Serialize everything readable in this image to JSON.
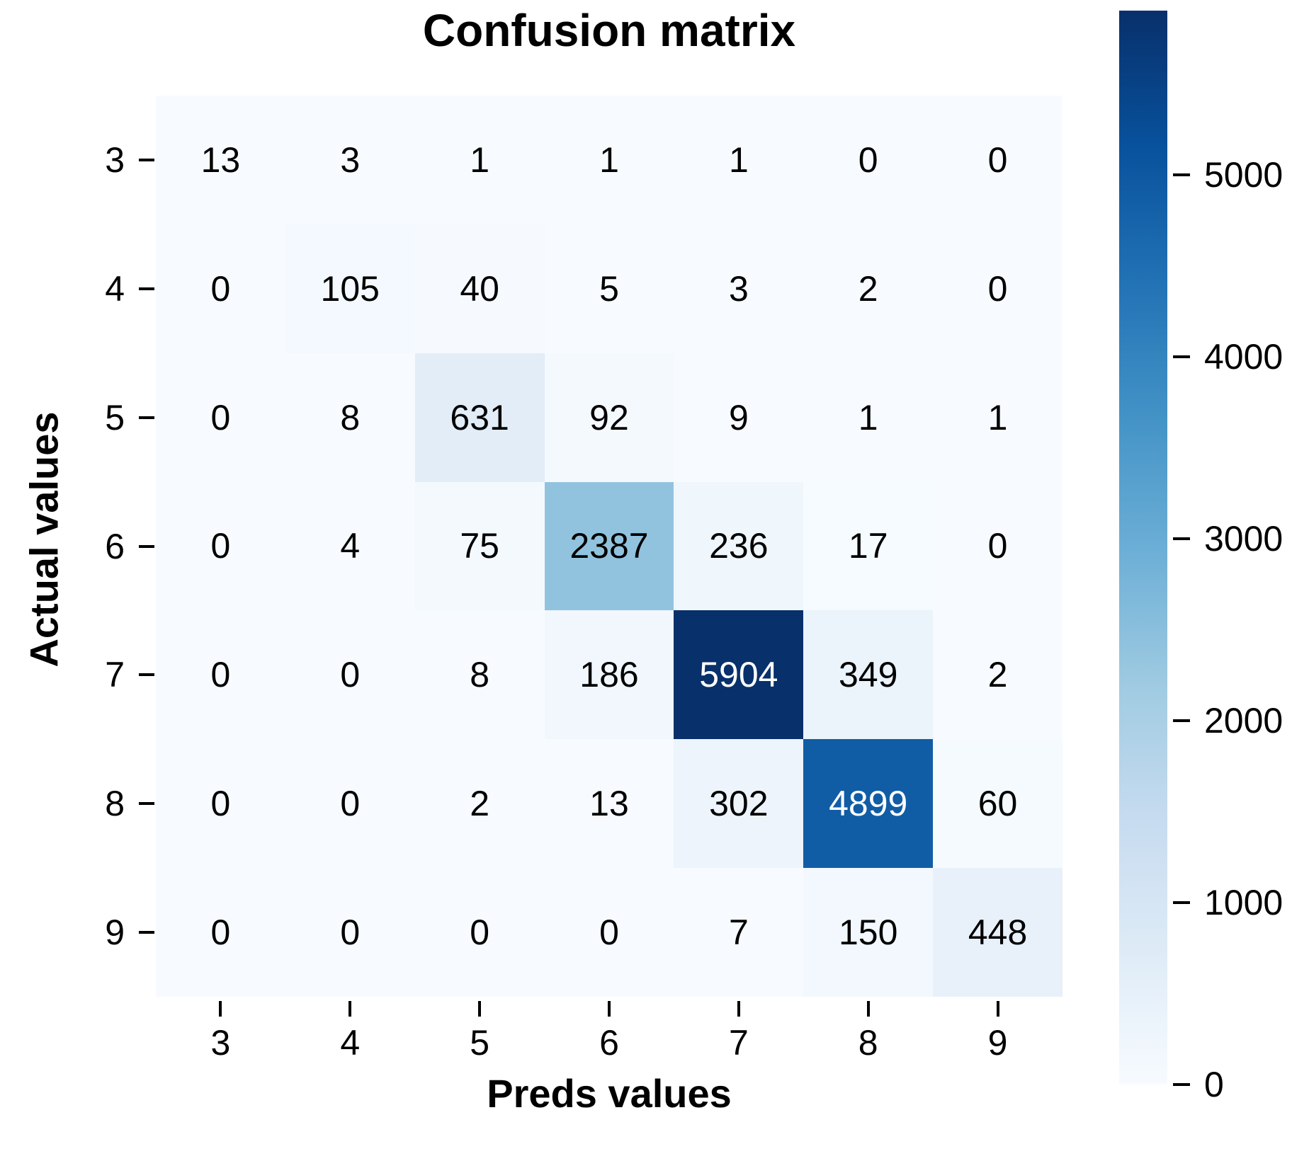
{
  "chart_data": {
    "type": "heatmap",
    "title": "Confusion matrix",
    "xlabel": "Preds values",
    "ylabel": "Actual values",
    "x_tick_labels": [
      "3",
      "4",
      "5",
      "6",
      "7",
      "8",
      "9"
    ],
    "y_tick_labels": [
      "3",
      "4",
      "5",
      "6",
      "7",
      "8",
      "9"
    ],
    "matrix": [
      [
        13,
        3,
        1,
        1,
        1,
        0,
        0
      ],
      [
        0,
        105,
        40,
        5,
        3,
        2,
        0
      ],
      [
        0,
        8,
        631,
        92,
        9,
        1,
        1
      ],
      [
        0,
        4,
        75,
        2387,
        236,
        17,
        0
      ],
      [
        0,
        0,
        8,
        186,
        5904,
        349,
        2
      ],
      [
        0,
        0,
        2,
        13,
        302,
        4899,
        60
      ],
      [
        0,
        0,
        0,
        0,
        7,
        150,
        448
      ]
    ],
    "vmin": 0,
    "vmax": 5904,
    "colormap_name": "Blues",
    "colormap_stops": [
      {
        "t": 0.0,
        "hex": "#f7fbff"
      },
      {
        "t": 0.125,
        "hex": "#deebf7"
      },
      {
        "t": 0.25,
        "hex": "#c6dbef"
      },
      {
        "t": 0.375,
        "hex": "#9ecae1"
      },
      {
        "t": 0.5,
        "hex": "#6baed6"
      },
      {
        "t": 0.625,
        "hex": "#4292c6"
      },
      {
        "t": 0.75,
        "hex": "#2171b5"
      },
      {
        "t": 0.875,
        "hex": "#08519c"
      },
      {
        "t": 1.0,
        "hex": "#08306b"
      }
    ],
    "colorbar_tick_labels": [
      "0",
      "1000",
      "2000",
      "3000",
      "4000",
      "5000"
    ],
    "colorbar_tick_values": [
      0,
      1000,
      2000,
      3000,
      4000,
      5000
    ],
    "colorbar_position": "right",
    "grid": false,
    "cell_text_color_dark": "#000000",
    "cell_text_color_light": "#ffffff",
    "white_text_threshold": 0.6,
    "tick_color": "#000000",
    "background_color": "#ffffff"
  }
}
